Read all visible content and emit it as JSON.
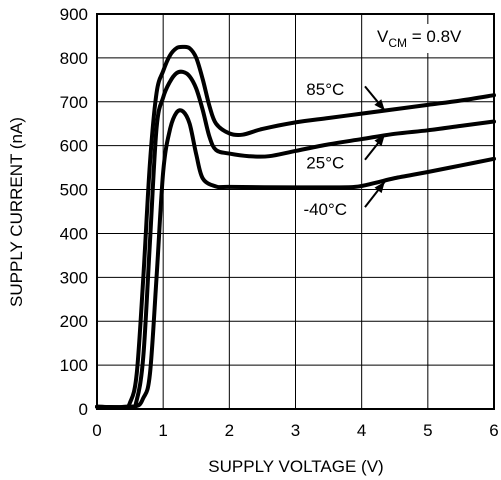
{
  "chart_data": {
    "type": "line",
    "xlabel": "SUPPLY VOLTAGE (V)",
    "ylabel": "SUPPLY CURRENT (nA)",
    "xlim": [
      0,
      6
    ],
    "ylim": [
      0,
      900
    ],
    "x_ticks": [
      "0",
      "1",
      "2",
      "3",
      "4",
      "5",
      "6"
    ],
    "y_ticks": [
      "0",
      "100",
      "200",
      "300",
      "400",
      "500",
      "600",
      "700",
      "800",
      "900"
    ],
    "grid": true,
    "annotation": {
      "main": "V",
      "sub": "CM",
      "rest": " = 0.8V"
    },
    "series": [
      {
        "name": "85°C",
        "points": [
          [
            0,
            5
          ],
          [
            0.4,
            5
          ],
          [
            0.5,
            15
          ],
          [
            0.6,
            80
          ],
          [
            0.7,
            300
          ],
          [
            0.8,
            560
          ],
          [
            0.9,
            720
          ],
          [
            1.0,
            770
          ],
          [
            1.1,
            805
          ],
          [
            1.2,
            822
          ],
          [
            1.3,
            825
          ],
          [
            1.4,
            822
          ],
          [
            1.5,
            800
          ],
          [
            1.6,
            750
          ],
          [
            1.7,
            690
          ],
          [
            1.8,
            650
          ],
          [
            2.0,
            628
          ],
          [
            2.2,
            625
          ],
          [
            2.5,
            638
          ],
          [
            3.0,
            653
          ],
          [
            3.5,
            663
          ],
          [
            4.0,
            673
          ],
          [
            4.5,
            683
          ],
          [
            5.0,
            693
          ],
          [
            5.5,
            703
          ],
          [
            6.0,
            715
          ]
        ]
      },
      {
        "name": "25°C",
        "points": [
          [
            0,
            5
          ],
          [
            0.5,
            5
          ],
          [
            0.6,
            20
          ],
          [
            0.7,
            120
          ],
          [
            0.8,
            380
          ],
          [
            0.9,
            640
          ],
          [
            1.0,
            710
          ],
          [
            1.1,
            745
          ],
          [
            1.2,
            765
          ],
          [
            1.3,
            768
          ],
          [
            1.4,
            758
          ],
          [
            1.5,
            730
          ],
          [
            1.6,
            680
          ],
          [
            1.7,
            620
          ],
          [
            1.8,
            590
          ],
          [
            2.0,
            582
          ],
          [
            2.3,
            576
          ],
          [
            2.6,
            576
          ],
          [
            3.0,
            588
          ],
          [
            3.5,
            603
          ],
          [
            4.0,
            615
          ],
          [
            4.5,
            627
          ],
          [
            5.0,
            635
          ],
          [
            5.5,
            645
          ],
          [
            6.0,
            655
          ]
        ]
      },
      {
        "name": "-40°C",
        "points": [
          [
            0,
            5
          ],
          [
            0.55,
            5
          ],
          [
            0.7,
            25
          ],
          [
            0.8,
            80
          ],
          [
            0.9,
            300
          ],
          [
            1.0,
            540
          ],
          [
            1.1,
            635
          ],
          [
            1.2,
            675
          ],
          [
            1.3,
            678
          ],
          [
            1.4,
            650
          ],
          [
            1.5,
            580
          ],
          [
            1.6,
            525
          ],
          [
            1.8,
            507
          ],
          [
            2.0,
            506
          ],
          [
            3.0,
            505
          ],
          [
            3.5,
            505
          ],
          [
            3.9,
            506
          ],
          [
            4.2,
            515
          ],
          [
            4.5,
            526
          ],
          [
            5.0,
            540
          ],
          [
            5.5,
            555
          ],
          [
            6.0,
            570
          ]
        ]
      }
    ],
    "labels": [
      {
        "text": "85°C",
        "x": 3.45,
        "y": 715
      },
      {
        "text": "25°C",
        "x": 3.45,
        "y": 548
      },
      {
        "text": "-40°C",
        "x": 3.45,
        "y": 442
      }
    ],
    "callouts": [
      {
        "from": [
          4.05,
          735
        ],
        "to": [
          4.35,
          680
        ]
      },
      {
        "from": [
          4.05,
          568
        ],
        "to": [
          4.35,
          625
        ]
      },
      {
        "from": [
          4.05,
          460
        ],
        "to": [
          4.35,
          518
        ]
      }
    ]
  }
}
